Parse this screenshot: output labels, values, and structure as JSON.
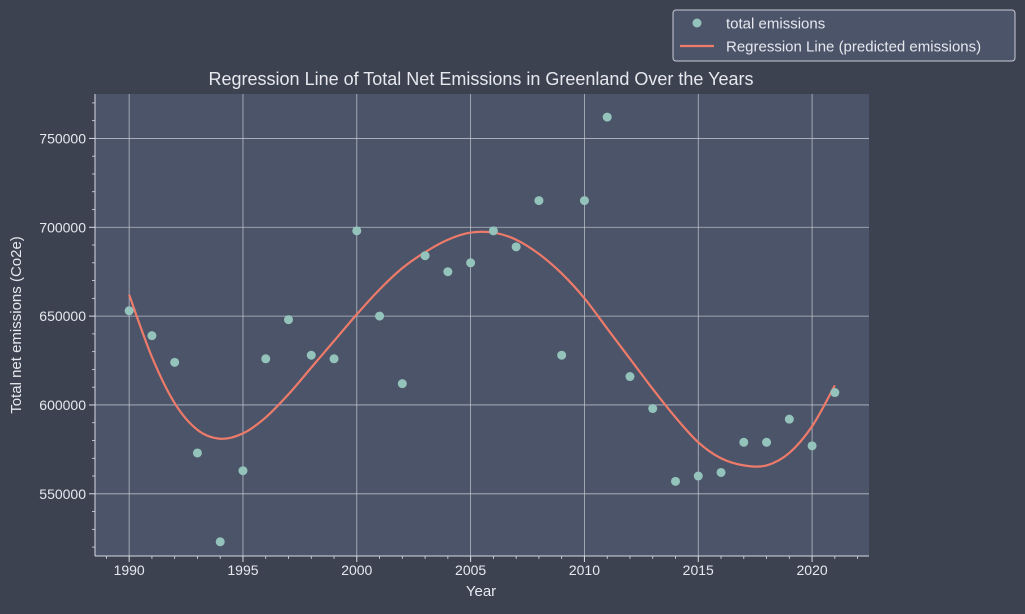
{
  "chart_data": {
    "type": "scatter",
    "title": "Regression Line of Total Net Emissions in Greenland Over the Years",
    "xlabel": "Year",
    "ylabel": "Total net emissions (Co2e)",
    "xlim": [
      1988.5,
      2022.5
    ],
    "ylim": [
      515000,
      775000
    ],
    "x_ticks": [
      1990,
      1995,
      2000,
      2005,
      2010,
      2015,
      2020
    ],
    "y_ticks": [
      550000,
      600000,
      650000,
      700000,
      750000
    ],
    "grid": true,
    "legend": "top-right",
    "colors": {
      "background": "#3d4251",
      "plot_area": "#4b5469",
      "grid": "#c9ccd6",
      "axis": "#d8dbe3",
      "points": "#94c3bb",
      "line": "#ee7b6a"
    },
    "series": [
      {
        "name": "total emissions",
        "kind": "scatter",
        "x": [
          1990,
          1991,
          1992,
          1993,
          1994,
          1995,
          1996,
          1997,
          1998,
          1999,
          2000,
          2001,
          2002,
          2003,
          2004,
          2005,
          2006,
          2007,
          2008,
          2009,
          2010,
          2011,
          2012,
          2013,
          2014,
          2015,
          2016,
          2017,
          2018,
          2019,
          2020,
          2021
        ],
        "y": [
          653000,
          639000,
          624000,
          573000,
          523000,
          563000,
          626000,
          648000,
          628000,
          626000,
          698000,
          650000,
          612000,
          684000,
          675000,
          680000,
          698000,
          689000,
          715000,
          628000,
          715000,
          762000,
          616000,
          598000,
          557000,
          560000,
          562000,
          579000,
          579000,
          592000,
          577000,
          607000
        ]
      },
      {
        "name": "Regression Line (predicted emissions)",
        "kind": "line",
        "x": [
          1990,
          1991,
          1992,
          1993,
          1994,
          1995,
          1996,
          1997,
          1998,
          1999,
          2000,
          2001,
          2002,
          2003,
          2004,
          2005,
          2006,
          2007,
          2008,
          2009,
          2010,
          2011,
          2012,
          2013,
          2014,
          2015,
          2016,
          2017,
          2018,
          2019,
          2020,
          2021
        ],
        "y": [
          662000,
          627000,
          601000,
          586000,
          581000,
          584000,
          593000,
          606000,
          621000,
          636000,
          651000,
          665000,
          677000,
          686000,
          693000,
          697000,
          697000,
          693000,
          685000,
          674000,
          660000,
          643000,
          626000,
          609000,
          593000,
          579000,
          570000,
          566000,
          566000,
          573000,
          588000,
          611000
        ]
      }
    ]
  }
}
